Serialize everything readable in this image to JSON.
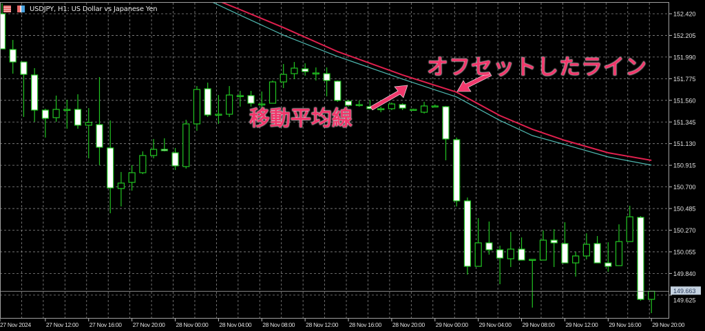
{
  "window": {
    "title": "USDJPY, H1:  US Dollar vs Japanese Yen"
  },
  "icons": [
    "chart-list-icon",
    "chart-type-icon"
  ],
  "annotations": {
    "ma_label": "移動平均線",
    "offset_label": "オフセットしたライン"
  },
  "colors": {
    "background": "#000000",
    "candle_border": "#22c522",
    "bear_fill": "#ffffff",
    "bull_fill": "#000000",
    "ma": "#4fb8b0",
    "offset_ma": "#e0204e",
    "annotation": "#f0386c",
    "grid": "#8a8a8a"
  },
  "chart_data": {
    "type": "candlestick",
    "symbol": "USDJPY",
    "timeframe": "H1",
    "ylim": [
      149.49,
      152.55
    ],
    "grid": true,
    "current_price": "149.663",
    "y_ticks": [
      "152.420",
      "152.205",
      "151.990",
      "151.775",
      "151.560",
      "151.345",
      "151.130",
      "150.915",
      "150.700",
      "150.485",
      "150.270",
      "150.055",
      "149.840",
      "149.625"
    ],
    "x_ticks": [
      "27 Nov 2024",
      "27 Nov 12:00",
      "27 Nov 16:00",
      "27 Nov 20:00",
      "28 Nov 00:00",
      "28 Nov 04:00",
      "28 Nov 08:00",
      "28 Nov 12:00",
      "28 Nov 16:00",
      "28 Nov 20:00",
      "29 Nov 00:00",
      "29 Nov 04:00",
      "29 Nov 08:00",
      "29 Nov 12:00",
      "29 Nov 16:00",
      "29 Nov 20:00"
    ],
    "candle_fields": [
      "time",
      "open",
      "high",
      "low",
      "close"
    ],
    "candles": [
      [
        "27 Nov 08:00",
        152.42,
        152.523,
        152.071,
        152.071
      ],
      [
        "27 Nov 09:00",
        152.065,
        152.16,
        151.825,
        151.941
      ],
      [
        "27 Nov 10:00",
        151.941,
        151.941,
        151.395,
        151.818
      ],
      [
        "27 Nov 11:00",
        151.812,
        151.88,
        151.347,
        151.463
      ],
      [
        "27 Nov 12:00",
        151.463,
        151.477,
        151.19,
        151.381
      ],
      [
        "27 Nov 13:00",
        151.388,
        151.607,
        151.347,
        151.47
      ],
      [
        "27 Nov 14:00",
        151.47,
        151.565,
        151.278,
        151.47
      ],
      [
        "27 Nov 15:00",
        151.47,
        151.62,
        151.278,
        151.313
      ],
      [
        "27 Nov 16:00",
        151.313,
        151.483,
        150.984,
        151.34
      ],
      [
        "27 Nov 17:00",
        151.319,
        151.791,
        150.916,
        151.094
      ],
      [
        "27 Nov 18:00",
        151.087,
        151.36,
        150.438,
        150.69
      ],
      [
        "27 Nov 19:00",
        150.684,
        150.848,
        150.506,
        150.738
      ],
      [
        "27 Nov 20:00",
        150.745,
        150.916,
        150.663,
        150.841
      ],
      [
        "27 Nov 21:00",
        150.841,
        151.053,
        150.827,
        151.012
      ],
      [
        "27 Nov 22:00",
        151.012,
        151.176,
        150.984,
        151.073
      ],
      [
        "27 Nov 23:00",
        151.073,
        151.183,
        151.053,
        151.06
      ],
      [
        "28 Nov 00:00",
        151.039,
        151.087,
        150.868,
        150.909
      ],
      [
        "28 Nov 01:00",
        150.902,
        151.367,
        150.882,
        151.326
      ],
      [
        "28 Nov 02:00",
        151.326,
        151.702,
        151.258,
        151.668
      ],
      [
        "28 Nov 03:00",
        151.675,
        151.736,
        151.395,
        151.415
      ],
      [
        "28 Nov 04:00",
        151.422,
        151.613,
        151.326,
        151.422
      ],
      [
        "28 Nov 05:00",
        151.422,
        151.702,
        151.395,
        151.613
      ],
      [
        "28 Nov 06:00",
        151.607,
        151.654,
        151.497,
        151.607
      ],
      [
        "28 Nov 07:00",
        151.607,
        151.654,
        151.497,
        151.531
      ],
      [
        "28 Nov 08:00",
        151.524,
        151.648,
        151.483,
        151.524
      ],
      [
        "28 Nov 09:00",
        151.531,
        151.757,
        151.531,
        151.743
      ],
      [
        "28 Nov 10:00",
        151.743,
        151.921,
        151.682,
        151.818
      ],
      [
        "28 Nov 11:00",
        151.825,
        151.941,
        151.771,
        151.88
      ],
      [
        "28 Nov 12:00",
        151.873,
        151.928,
        151.805,
        151.846
      ],
      [
        "28 Nov 13:00",
        151.832,
        151.887,
        151.757,
        151.832
      ],
      [
        "28 Nov 14:00",
        151.825,
        151.887,
        151.6,
        151.757
      ],
      [
        "28 Nov 15:00",
        151.75,
        151.757,
        151.545,
        151.559
      ],
      [
        "28 Nov 16:00",
        151.552,
        151.565,
        151.497,
        151.511
      ],
      [
        "28 Nov 17:00",
        151.518,
        151.559,
        151.497,
        151.518
      ],
      [
        "28 Nov 18:00",
        151.497,
        151.565,
        151.477,
        151.477
      ],
      [
        "28 Nov 19:00",
        151.477,
        151.497,
        151.442,
        151.477
      ],
      [
        "28 Nov 20:00",
        151.477,
        151.538,
        151.463,
        151.524
      ],
      [
        "28 Nov 21:00",
        151.518,
        151.531,
        151.463,
        151.483
      ],
      [
        "28 Nov 22:00",
        151.47,
        151.477,
        151.463,
        151.47
      ],
      [
        "28 Nov 23:00",
        151.442,
        151.545,
        151.429,
        151.504
      ],
      [
        "29 Nov 00:00",
        151.504,
        151.518,
        151.497,
        151.504
      ],
      [
        "29 Nov 01:00",
        151.497,
        151.504,
        150.964,
        151.176
      ],
      [
        "29 Nov 02:00",
        151.169,
        151.19,
        150.506,
        150.561
      ],
      [
        "29 Nov 03:00",
        150.561,
        150.595,
        149.829,
        149.911
      ],
      [
        "29 Nov 04:00",
        149.911,
        150.39,
        149.911,
        150.144
      ],
      [
        "29 Nov 05:00",
        150.144,
        150.356,
        150.027,
        150.075
      ],
      [
        "29 Nov 06:00",
        150.075,
        150.116,
        149.733,
        149.993
      ],
      [
        "29 Nov 07:00",
        149.986,
        150.253,
        149.904,
        150.082
      ],
      [
        "29 Nov 08:00",
        150.082,
        150.198,
        149.973,
        149.973
      ],
      [
        "29 Nov 09:00",
        149.98,
        149.98,
        149.501,
        149.98
      ],
      [
        "29 Nov 10:00",
        149.973,
        150.267,
        149.973,
        150.171
      ],
      [
        "29 Nov 11:00",
        150.171,
        150.28,
        149.904,
        150.144
      ],
      [
        "29 Nov 12:00",
        150.137,
        150.349,
        149.945,
        149.945
      ],
      [
        "29 Nov 13:00",
        149.945,
        150.055,
        149.809,
        150.014
      ],
      [
        "29 Nov 14:00",
        150.014,
        150.239,
        149.98,
        150.13
      ],
      [
        "29 Nov 15:00",
        150.137,
        150.212,
        149.945,
        149.945
      ],
      [
        "29 Nov 16:00",
        149.945,
        150.15,
        149.857,
        149.911
      ],
      [
        "29 Nov 17:00",
        149.918,
        150.328,
        149.918,
        150.157
      ],
      [
        "29 Nov 18:00",
        150.157,
        150.513,
        150.157,
        150.403
      ],
      [
        "29 Nov 19:00",
        150.397,
        150.41,
        149.569,
        149.583
      ],
      [
        "29 Nov 20:00",
        149.583,
        149.663,
        149.446,
        149.663
      ]
    ],
    "series": [
      {
        "kind": "moving-average",
        "points": [
          [
            "28 Nov 03:00",
            152.557
          ],
          [
            "28 Nov 06:00",
            152.406
          ],
          [
            "28 Nov 10:00",
            152.208
          ],
          [
            "28 Nov 15:00",
            151.996
          ],
          [
            "28 Nov 21:00",
            151.771
          ],
          [
            "29 Nov 02:00",
            151.593
          ],
          [
            "29 Nov 06:00",
            151.36
          ],
          [
            "29 Nov 09:00",
            151.21
          ],
          [
            "29 Nov 12:00",
            151.121
          ],
          [
            "29 Nov 16:00",
            150.998
          ],
          [
            "29 Nov 20:00",
            150.916
          ]
        ]
      },
      {
        "kind": "offset-moving-average",
        "points": [
          [
            "28 Nov 03:00",
            152.591
          ],
          [
            "28 Nov 06:00",
            152.461
          ],
          [
            "28 Nov 10:00",
            152.283
          ],
          [
            "28 Nov 15:00",
            152.044
          ],
          [
            "28 Nov 21:00",
            151.812
          ],
          [
            "29 Nov 02:00",
            151.641
          ],
          [
            "29 Nov 06:00",
            151.408
          ],
          [
            "29 Nov 09:00",
            151.272
          ],
          [
            "29 Nov 12:00",
            151.162
          ],
          [
            "29 Nov 16:00",
            151.039
          ],
          [
            "29 Nov 20:00",
            150.964
          ]
        ]
      }
    ]
  }
}
